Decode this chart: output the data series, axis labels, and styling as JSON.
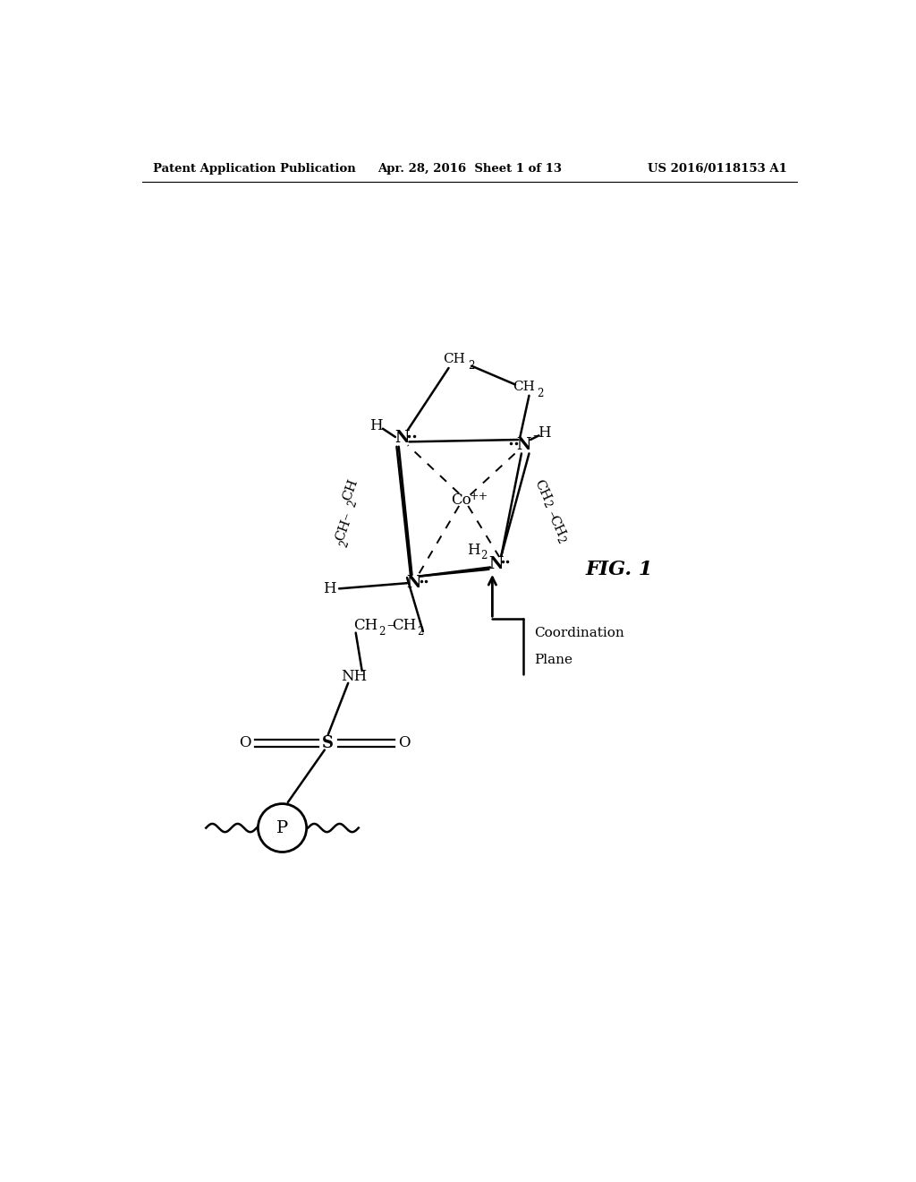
{
  "header_left": "Patent Application Publication",
  "header_mid": "Apr. 28, 2016  Sheet 1 of 13",
  "header_right": "US 2016/0118153 A1",
  "fig_label": "FIG. 1",
  "background_color": "#ffffff",
  "line_color": "#000000",
  "text_color": "#000000",
  "font_size_header": 9.5,
  "font_size_label": 10,
  "font_size_sub": 7.5,
  "font_size_fig": 16
}
